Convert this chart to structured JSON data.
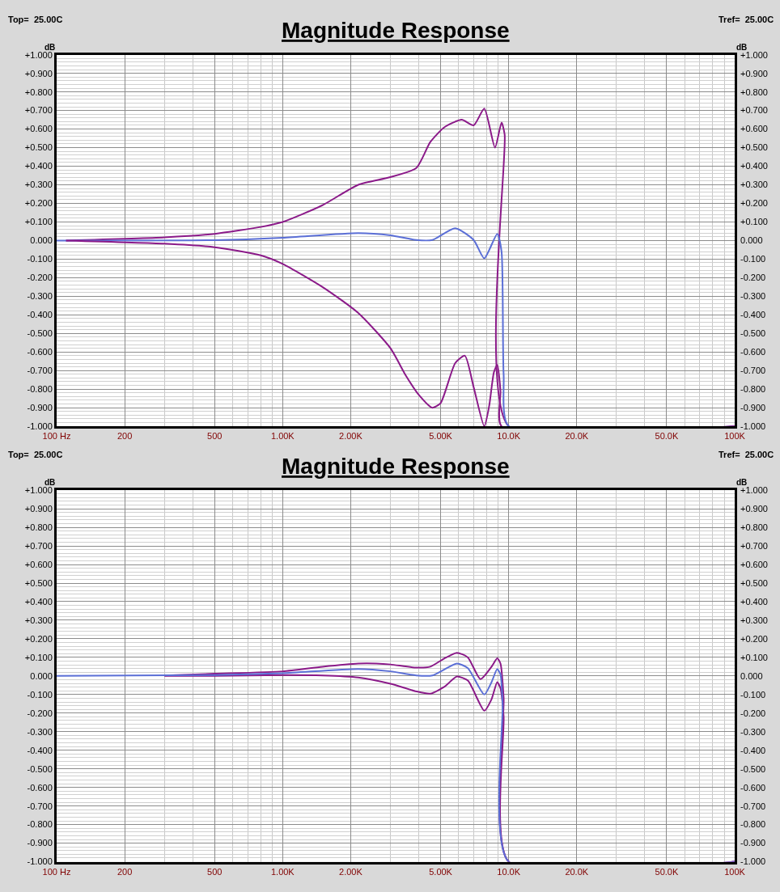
{
  "chart_data": [
    {
      "type": "line",
      "title": "Magnitude Response",
      "annotations": [
        "Top=  25.00C",
        "Tref=  25.00C"
      ],
      "ylabel": "dB",
      "y2label": "dB",
      "log": "x",
      "grid": true,
      "xlim": [
        100,
        100000
      ],
      "xticks": [
        {
          "value": 100,
          "label": "100 Hz"
        },
        200,
        500,
        {
          "value": 1000,
          "label": "1.00K"
        },
        {
          "value": 2000,
          "label": "2.00K"
        },
        {
          "value": 5000,
          "label": "5.00K"
        },
        {
          "value": 10000,
          "label": "10.0K"
        },
        {
          "value": 20000,
          "label": "20.0K"
        },
        {
          "value": 50000,
          "label": "50.0K"
        },
        {
          "value": 100000,
          "label": "100K"
        }
      ],
      "ylim": [
        -1,
        1
      ],
      "yticks": [
        {
          "value": 1,
          "label": "+1.000"
        },
        {
          "value": 0.9,
          "label": "+0.900"
        },
        {
          "value": 0.8,
          "label": "+0.800"
        },
        {
          "value": 0.7,
          "label": "+0.700"
        },
        {
          "value": 0.6,
          "label": "+0.600"
        },
        {
          "value": 0.5,
          "label": "+0.500"
        },
        {
          "value": 0.4,
          "label": "+0.400"
        },
        {
          "value": 0.3,
          "label": "+0.300"
        },
        {
          "value": 0.2,
          "label": "+0.200"
        },
        {
          "value": 0.1,
          "label": "+0.100"
        },
        {
          "value": 0,
          "label": "0.000"
        },
        {
          "value": -0.1,
          "label": "-0.100"
        },
        {
          "value": -0.2,
          "label": "-0.200"
        },
        {
          "value": -0.3,
          "label": "-0.300"
        },
        {
          "value": -0.4,
          "label": "-0.400"
        },
        {
          "value": -0.5,
          "label": "-0.500"
        },
        {
          "value": -0.6,
          "label": "-0.600"
        },
        {
          "value": -0.7,
          "label": "-0.700"
        },
        {
          "value": -0.8,
          "label": "-0.800"
        },
        {
          "value": -0.9,
          "label": "-0.900"
        },
        {
          "value": -1,
          "label": "-1.000"
        }
      ],
      "y2lim": [
        -1,
        1
      ],
      "y2ticks": [
        {
          "value": 1,
          "label": "+1.000"
        },
        {
          "value": 0.9,
          "label": "+0.900"
        },
        {
          "value": 0.8,
          "label": "+0.800"
        },
        {
          "value": 0.7,
          "label": "+0.700"
        },
        {
          "value": 0.6,
          "label": "+0.600"
        },
        {
          "value": 0.5,
          "label": "+0.500"
        },
        {
          "value": 0.4,
          "label": "+0.400"
        },
        {
          "value": 0.3,
          "label": "+0.300"
        },
        {
          "value": 0.2,
          "label": "+0.200"
        },
        {
          "value": 0.1,
          "label": "+0.100"
        },
        {
          "value": 0,
          "label": "0.000"
        },
        {
          "value": -0.1,
          "label": "-0.100"
        },
        {
          "value": -0.2,
          "label": "-0.200"
        },
        {
          "value": -0.3,
          "label": "-0.300"
        },
        {
          "value": -0.4,
          "label": "-0.400"
        },
        {
          "value": -0.5,
          "label": "-0.500"
        },
        {
          "value": -0.6,
          "label": "-0.600"
        },
        {
          "value": -0.7,
          "label": "-0.700"
        },
        {
          "value": -0.8,
          "label": "-0.800"
        },
        {
          "value": -0.9,
          "label": "-0.900"
        },
        {
          "value": -1,
          "label": "-1.000"
        }
      ],
      "series": [
        {
          "color": "#8b1a89",
          "x": [
            110,
            300,
            500,
            800,
            1000,
            1500,
            2160,
            2970,
            3900,
            4500,
            5200,
            6200,
            7000,
            7800,
            8700,
            9300,
            9600,
            10000,
            100000
          ],
          "values": [
            0,
            0.017,
            0.036,
            0.073,
            0.1,
            0.19,
            0.3,
            0.34,
            0.39,
            0.53,
            0.61,
            0.65,
            0.62,
            0.71,
            0.5,
            0.635,
            0.57,
            -1,
            -1
          ]
        },
        {
          "color": "#5b6fd6",
          "x": [
            100,
            500,
            1000,
            2160,
            3000,
            3900,
            4600,
            5800,
            7000,
            7800,
            8900,
            9300,
            9500,
            10000,
            100000
          ],
          "values": [
            0,
            0.002,
            0.015,
            0.04,
            0.028,
            0.003,
            0.003,
            0.066,
            0.003,
            -0.096,
            0.036,
            -0.06,
            -0.72,
            -1,
            -1
          ]
        },
        {
          "color": "#8b1a89",
          "x": [
            110,
            300,
            500,
            800,
            1000,
            1500,
            2160,
            3000,
            3500,
            4000,
            4600,
            5000,
            5800,
            6400,
            7000,
            7800,
            8200,
            8600,
            8900,
            9200,
            9300,
            100000
          ],
          "values": [
            0,
            -0.017,
            -0.036,
            -0.08,
            -0.126,
            -0.25,
            -0.39,
            -0.58,
            -0.725,
            -0.83,
            -0.9,
            -0.875,
            -0.66,
            -0.62,
            -0.79,
            -1,
            -0.89,
            -0.71,
            -0.67,
            -0.81,
            -1,
            -1
          ]
        }
      ]
    },
    {
      "type": "line",
      "title": "Magnitude Response",
      "annotations": [
        "Top=  25.00C",
        "Tref=  25.00C"
      ],
      "ylabel": "dB",
      "y2label": "dB",
      "log": "x",
      "grid": true,
      "xlim": [
        100,
        100000
      ],
      "xticks": [
        {
          "value": 100,
          "label": "100 Hz"
        },
        200,
        500,
        {
          "value": 1000,
          "label": "1.00K"
        },
        {
          "value": 2000,
          "label": "2.00K"
        },
        {
          "value": 5000,
          "label": "5.00K"
        },
        {
          "value": 10000,
          "label": "10.0K"
        },
        {
          "value": 20000,
          "label": "20.0K"
        },
        {
          "value": 50000,
          "label": "50.0K"
        },
        {
          "value": 100000,
          "label": "100K"
        }
      ],
      "ylim": [
        -1,
        1
      ],
      "yticks": [
        {
          "value": 1,
          "label": "+1.000"
        },
        {
          "value": 0.9,
          "label": "+0.900"
        },
        {
          "value": 0.8,
          "label": "+0.800"
        },
        {
          "value": 0.7,
          "label": "+0.700"
        },
        {
          "value": 0.6,
          "label": "+0.600"
        },
        {
          "value": 0.5,
          "label": "+0.500"
        },
        {
          "value": 0.4,
          "label": "+0.400"
        },
        {
          "value": 0.3,
          "label": "+0.300"
        },
        {
          "value": 0.2,
          "label": "+0.200"
        },
        {
          "value": 0.1,
          "label": "+0.100"
        },
        {
          "value": 0,
          "label": "0.000"
        },
        {
          "value": -0.1,
          "label": "-0.100"
        },
        {
          "value": -0.2,
          "label": "-0.200"
        },
        {
          "value": -0.3,
          "label": "-0.300"
        },
        {
          "value": -0.4,
          "label": "-0.400"
        },
        {
          "value": -0.5,
          "label": "-0.500"
        },
        {
          "value": -0.6,
          "label": "-0.600"
        },
        {
          "value": -0.7,
          "label": "-0.700"
        },
        {
          "value": -0.8,
          "label": "-0.800"
        },
        {
          "value": -0.9,
          "label": "-0.900"
        },
        {
          "value": -1,
          "label": "-1.000"
        }
      ],
      "y2lim": [
        -1,
        1
      ],
      "y2ticks": [
        {
          "value": 1,
          "label": "+1.000"
        },
        {
          "value": 0.9,
          "label": "+0.900"
        },
        {
          "value": 0.8,
          "label": "+0.800"
        },
        {
          "value": 0.7,
          "label": "+0.700"
        },
        {
          "value": 0.6,
          "label": "+0.600"
        },
        {
          "value": 0.5,
          "label": "+0.500"
        },
        {
          "value": 0.4,
          "label": "+0.400"
        },
        {
          "value": 0.3,
          "label": "+0.300"
        },
        {
          "value": 0.2,
          "label": "+0.200"
        },
        {
          "value": 0.1,
          "label": "+0.100"
        },
        {
          "value": 0,
          "label": "0.000"
        },
        {
          "value": -0.1,
          "label": "-0.100"
        },
        {
          "value": -0.2,
          "label": "-0.200"
        },
        {
          "value": -0.3,
          "label": "-0.300"
        },
        {
          "value": -0.4,
          "label": "-0.400"
        },
        {
          "value": -0.5,
          "label": "-0.500"
        },
        {
          "value": -0.6,
          "label": "-0.600"
        },
        {
          "value": -0.7,
          "label": "-0.700"
        },
        {
          "value": -0.8,
          "label": "-0.800"
        },
        {
          "value": -0.9,
          "label": "-0.900"
        },
        {
          "value": -1,
          "label": "-1.000"
        }
      ],
      "series": [
        {
          "color": "#8b1a89",
          "x": [
            300,
            500,
            1000,
            1500,
            2160,
            2600,
            3000,
            3900,
            4500,
            5200,
            5900,
            6600,
            7500,
            8400,
            8900,
            9200,
            9500,
            10000,
            100000
          ],
          "values": [
            0.003,
            0.012,
            0.025,
            0.05,
            0.067,
            0.067,
            0.062,
            0.045,
            0.05,
            0.095,
            0.125,
            0.1,
            -0.017,
            0.05,
            0.095,
            0.067,
            -0.117,
            -1,
            -1
          ]
        },
        {
          "color": "#8b1a89",
          "x": [
            300,
            500,
            1000,
            1500,
            2160,
            3000,
            3900,
            4500,
            5200,
            5900,
            6600,
            7800,
            8400,
            8900,
            9200,
            9500,
            10000,
            100000
          ],
          "values": [
            0,
            0,
            0.005,
            0.003,
            -0.008,
            -0.042,
            -0.083,
            -0.095,
            -0.058,
            -0.003,
            -0.025,
            -0.187,
            -0.125,
            -0.033,
            -0.067,
            -0.217,
            -1,
            -1
          ]
        },
        {
          "color": "#5b6fd6",
          "x": [
            100,
            500,
            1000,
            2160,
            3000,
            3900,
            4600,
            5900,
            6600,
            7800,
            8400,
            8900,
            9200,
            9400,
            10000,
            100000
          ],
          "values": [
            0,
            0.005,
            0.015,
            0.038,
            0.025,
            0.003,
            0.003,
            0.067,
            0.042,
            -0.1,
            -0.033,
            0.037,
            0.008,
            -0.15,
            -1,
            -1
          ]
        }
      ]
    }
  ]
}
